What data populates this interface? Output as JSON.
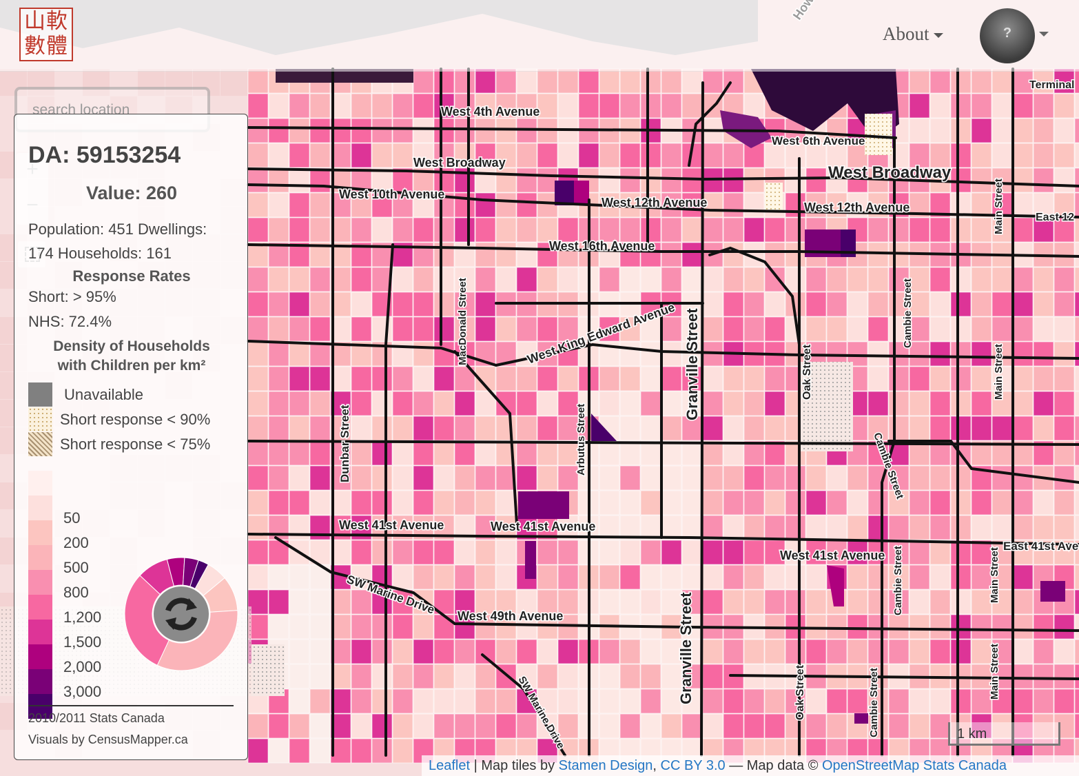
{
  "header": {
    "logo_text": "山軟數體",
    "about_label": "About",
    "avatar_glyph": "?"
  },
  "search": {
    "placeholder": "search location"
  },
  "zoom": {
    "in_label": "+",
    "out_label": "−"
  },
  "info_panel": {
    "da_title": "DA: 59153254",
    "value_text": "Value: 260",
    "population_line": "Population: 451 Dwellings:",
    "households_line": "174 Households: 161",
    "response_heading": "Response Rates",
    "short_rate": "Short:  > 95%",
    "nhs_rate": "NHS:   72.4%",
    "density_title_1": "Density of Households",
    "density_title_2": "with Children per km²",
    "legend": [
      {
        "label": "Unavailable",
        "color": "#808080"
      },
      {
        "label": "Short response < 90%",
        "pattern": "dots"
      },
      {
        "label": "Short response < 75%",
        "pattern": "hatch"
      }
    ],
    "scale": [
      {
        "label": "",
        "color": "#fff0ee"
      },
      {
        "label": "50",
        "color": "#fde0dd"
      },
      {
        "label": "200",
        "color": "#fcc5c0"
      },
      {
        "label": "500",
        "color": "#fbb4b9"
      },
      {
        "label": "800",
        "color": "#f98fb0"
      },
      {
        "label": "1,200",
        "color": "#f768a1"
      },
      {
        "label": "1,500",
        "color": "#dd3497"
      },
      {
        "label": "2,000",
        "color": "#ae017e"
      },
      {
        "label": "3,000",
        "color": "#7a0177"
      },
      {
        "label": "",
        "color": "#49006a"
      }
    ],
    "donut_shares": [
      {
        "color": "#fde0dd",
        "share": 0.06
      },
      {
        "color": "#fcc5c0",
        "share": 0.1
      },
      {
        "color": "#fbb4b9",
        "share": 0.33
      },
      {
        "color": "#f768a1",
        "share": 0.3
      },
      {
        "color": "#dd3497",
        "share": 0.09
      },
      {
        "color": "#ae017e",
        "share": 0.05
      },
      {
        "color": "#7a0177",
        "share": 0.04
      },
      {
        "color": "#49006a",
        "share": 0.03
      }
    ],
    "source_1": "2010/2011 Stats Canada",
    "source_2": "Visuals by CensusMapper.ca"
  },
  "map": {
    "street_labels": [
      "West 4th Avenue",
      "West 6th Avenue",
      "West Broadway",
      "West Broadway",
      "West 10th Avenue",
      "West 12th Avenue",
      "West 12th Avenue",
      "West 16th Avenue",
      "West King Edward Avenue",
      "MacDonald Street",
      "Dunbar Street",
      "Arbutus Street",
      "Granville Street",
      "Granville Street",
      "Oak Street",
      "Oak Street",
      "Cambie Street",
      "Cambie Street",
      "Cambie Street",
      "Cambie Street",
      "Main Street",
      "Main Street",
      "Main Street",
      "Main Street",
      "West 41st Avenue",
      "West 41st Avenue",
      "West 41st Avenue",
      "East 41st Ave",
      "West 49th Avenue",
      "SW Marine Drive",
      "SW Marine Drive",
      "Terminal",
      "East 12",
      "Howe"
    ],
    "scale_label": "1 km"
  },
  "attribution": {
    "leaflet": "Leaflet",
    "tiles_prefix": " | Map tiles by ",
    "stamen": "Stamen Design",
    "sep": ", ",
    "cc": "CC BY 3.0",
    "data_prefix": " — Map data © ",
    "osm": "OpenStreetMap Stats Canada"
  }
}
